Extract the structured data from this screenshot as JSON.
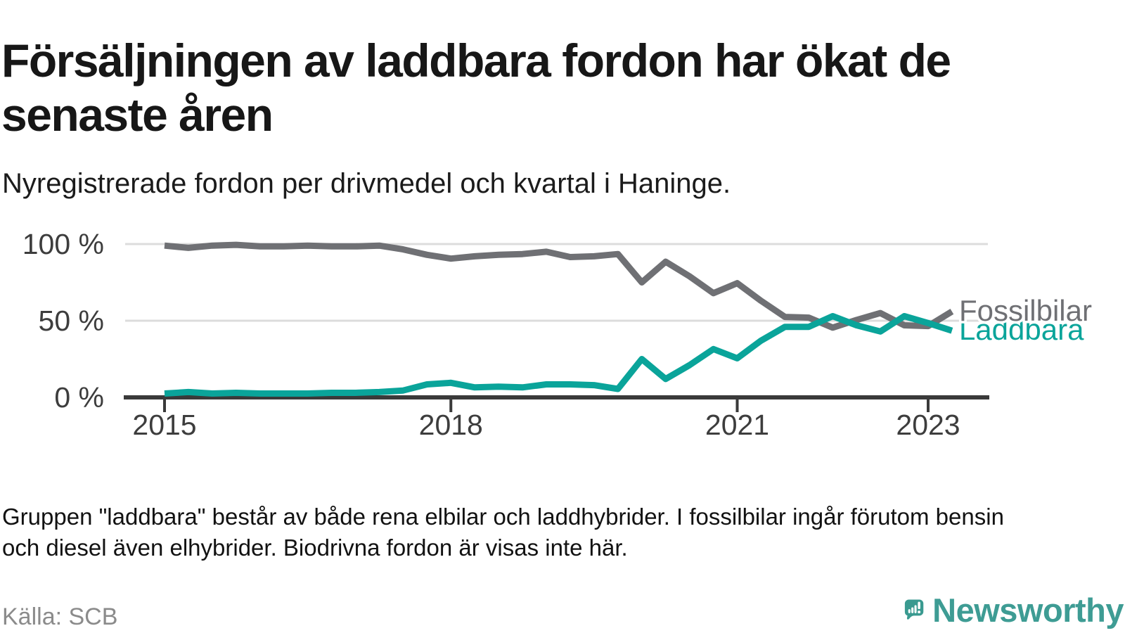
{
  "page": {
    "title": "Försäljningen av laddbara fordon har ökat de\nsenaste åren",
    "subtitle": "Nyregistrerade fordon per drivmedel och kvartal i Haninge.",
    "footnote": "Gruppen \"laddbara\" består av både rena elbilar och laddhybrider. I fossilbilar ingår förutom bensin\noch diesel även elhybrider. Biodrivna fordon är visas inte här.",
    "source": "Källa: SCB",
    "brand": {
      "name": "Newsworthy",
      "icon": "newsworthy-speech-bubble-bar-chart-icon",
      "color": "#3e9c94",
      "icon_color": "#3a9a90"
    }
  },
  "chart_data": {
    "type": "line",
    "title": "Försäljningen av laddbara fordon har ökat de senaste åren",
    "subtitle": "Nyregistrerade fordon per drivmedel och kvartal i Haninge.",
    "unit": "%",
    "grid": "horizontal",
    "legend_position": "end-of-line-labels",
    "xlabel": "",
    "ylabel": "",
    "ylim": [
      0,
      100
    ],
    "xlim": [
      2015,
      2023.5
    ],
    "yticks": [
      {
        "value": 0,
        "label": "0 %"
      },
      {
        "value": 50,
        "label": "50 %"
      },
      {
        "value": 100,
        "label": "100 %"
      }
    ],
    "xticks": [
      {
        "value": 2015,
        "label": "2015"
      },
      {
        "value": 2018,
        "label": "2018"
      },
      {
        "value": 2021,
        "label": "2021"
      },
      {
        "value": 2023,
        "label": "2023"
      }
    ],
    "x": [
      2015,
      2015.25,
      2015.5,
      2015.75,
      2016,
      2016.25,
      2016.5,
      2016.75,
      2017,
      2017.25,
      2017.5,
      2017.75,
      2018,
      2018.25,
      2018.5,
      2018.75,
      2019,
      2019.25,
      2019.5,
      2019.75,
      2020,
      2020.25,
      2020.5,
      2020.75,
      2021,
      2021.25,
      2021.5,
      2021.75,
      2022,
      2022.25,
      2022.5,
      2022.75,
      2023,
      2023.25
    ],
    "series": [
      {
        "name": "Fossilbilar",
        "color": "#6f7074",
        "values": [
          99,
          97.5,
          99,
          99.5,
          98.5,
          98.5,
          99,
          98.5,
          98.5,
          99,
          96.5,
          93,
          90.5,
          92,
          93,
          93.5,
          95,
          91.5,
          92,
          93.5,
          75,
          88.5,
          79,
          68,
          74.5,
          63,
          52.5,
          52,
          45.5,
          50.5,
          55,
          47,
          46.5,
          56
        ]
      },
      {
        "name": "Laddbara",
        "color": "#0aa49a",
        "values": [
          2.5,
          3.5,
          2.5,
          3,
          2.5,
          2.5,
          2.5,
          3,
          3,
          3.5,
          4.5,
          8.5,
          9.5,
          6.5,
          7,
          6.5,
          8.5,
          8.5,
          8,
          5.5,
          25,
          12,
          21,
          31.5,
          25.5,
          37,
          46,
          46,
          53,
          47,
          43,
          53,
          48.5,
          43.5
        ]
      }
    ],
    "axis_color": "#3a3a3a",
    "gridline_color": "#dcdcdc",
    "tick_label_color": "#3d3d3d"
  }
}
